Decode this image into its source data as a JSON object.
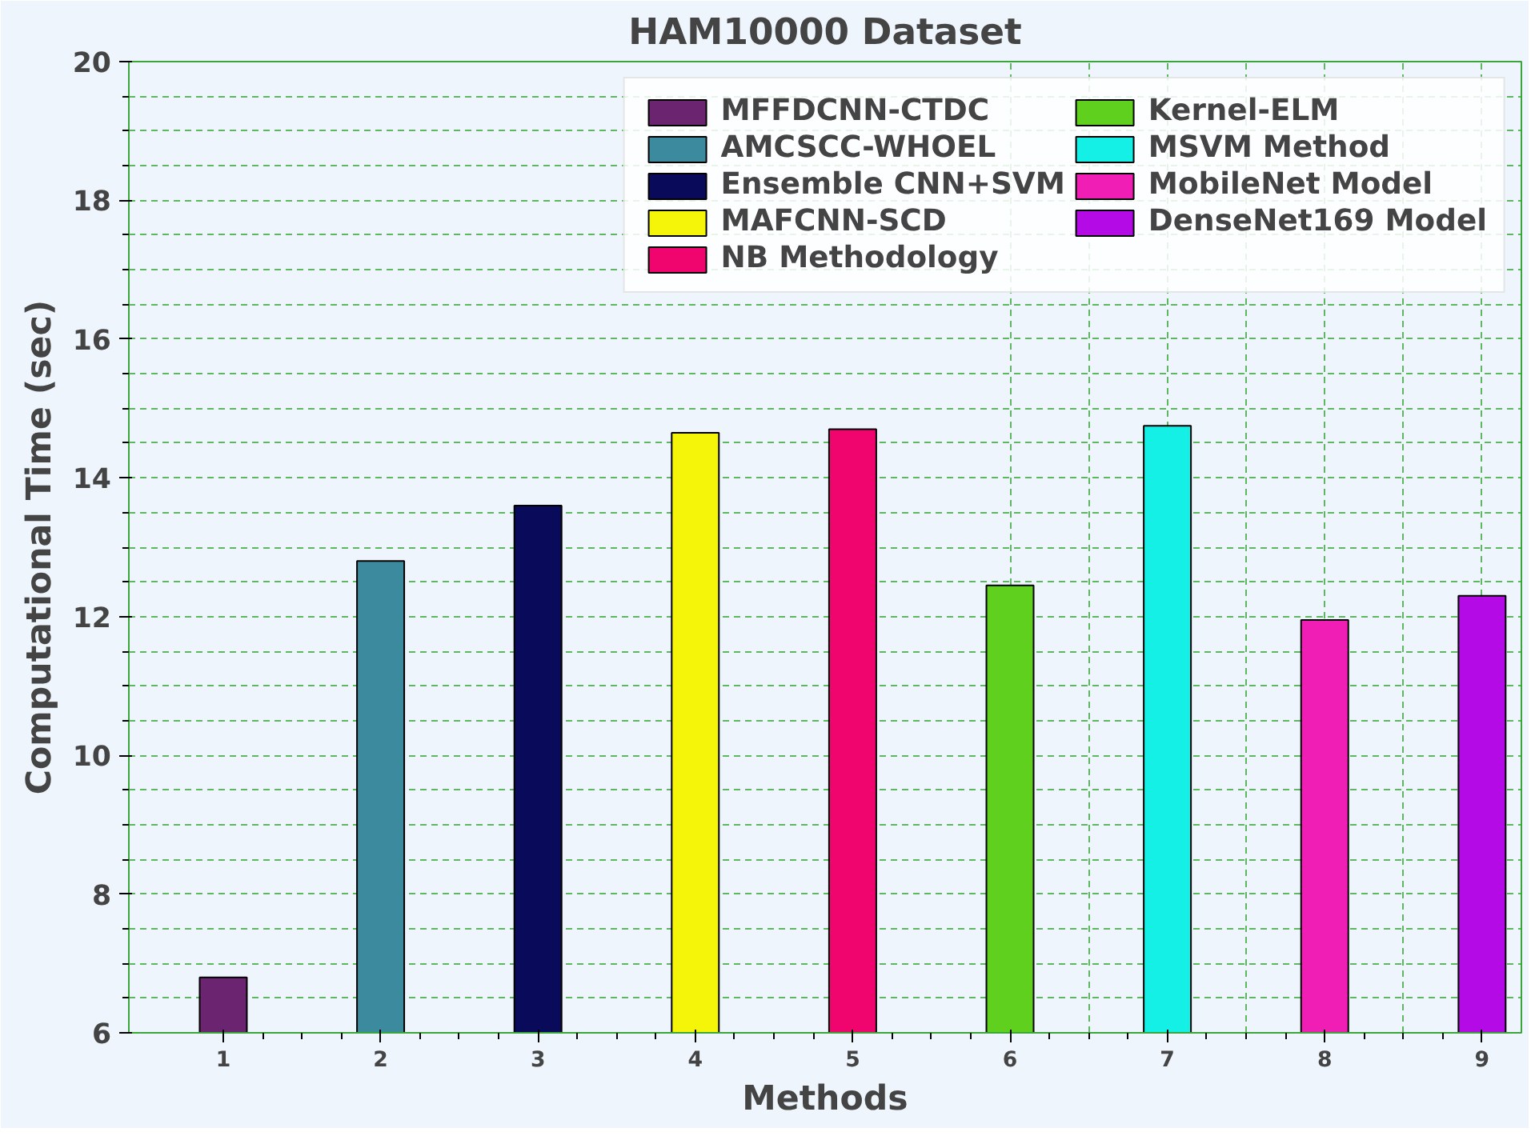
{
  "chart_data": {
    "type": "bar",
    "title": "HAM10000 Dataset",
    "xlabel": "Methods",
    "ylabel": "Computational Time (sec)",
    "xlim": [
      0.4,
      9.25
    ],
    "xticks": [
      1,
      2,
      3,
      4,
      5,
      6,
      7,
      8,
      9
    ],
    "ylim": [
      6,
      20
    ],
    "yticks": [
      6,
      8,
      10,
      12,
      14,
      16,
      18,
      20
    ],
    "grid": true,
    "legend": "top right",
    "series": [
      {
        "name": "MFFDCNN-CTDC",
        "color": "#6b2470",
        "x": [
          1
        ],
        "values": [
          6.8
        ]
      },
      {
        "name": "AMCSCC-WHOEL",
        "color": "#3b8a9e",
        "x": [
          2
        ],
        "values": [
          12.8
        ]
      },
      {
        "name": "Ensemble CNN+SVM",
        "color": "#0a0a5a",
        "x": [
          3
        ],
        "values": [
          13.6
        ]
      },
      {
        "name": "MAFCNN-SCD",
        "color": "#f5f50a",
        "x": [
          4
        ],
        "values": [
          14.65
        ]
      },
      {
        "name": "NB Methodology",
        "color": "#f0056e",
        "x": [
          5
        ],
        "values": [
          14.7
        ]
      },
      {
        "name": "Kernel-ELM",
        "color": "#5fd01e",
        "x": [
          6
        ],
        "values": [
          12.45
        ]
      },
      {
        "name": "MSVM Method",
        "color": "#14f0e6",
        "x": [
          7
        ],
        "values": [
          14.75
        ]
      },
      {
        "name": "MobileNet Model",
        "color": "#f01eb4",
        "x": [
          8
        ],
        "values": [
          11.95
        ]
      },
      {
        "name": "DenseNet169 Model",
        "color": "#b40ae6",
        "x": [
          9
        ],
        "values": [
          12.3
        ]
      }
    ]
  }
}
